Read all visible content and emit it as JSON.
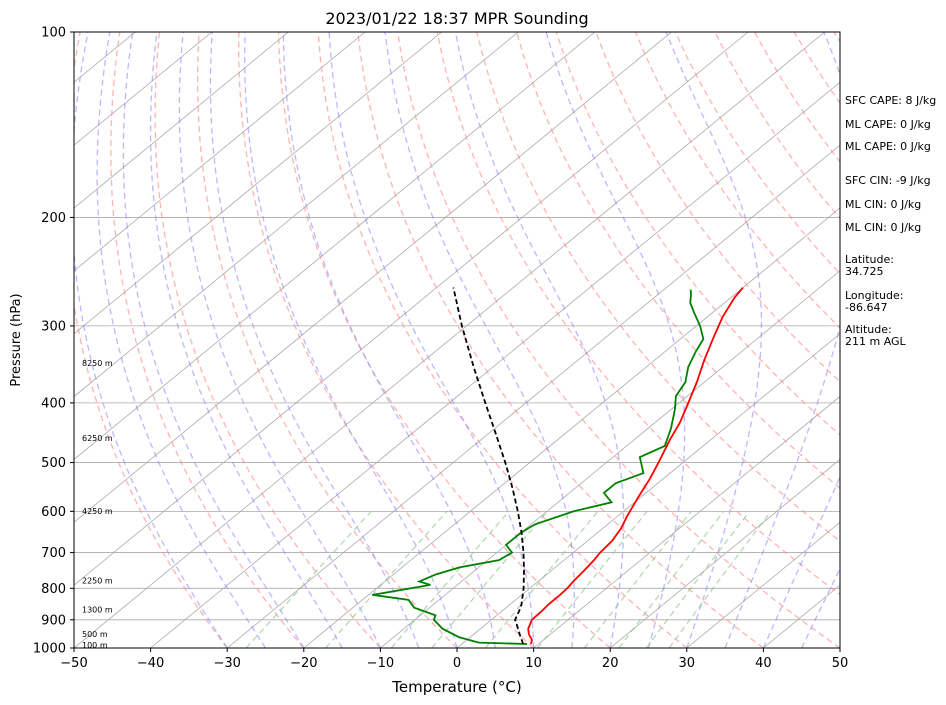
{
  "chart_data": {
    "type": "line",
    "title": "2023/01/22 18:37 MPR Sounding",
    "xlabel": "Temperature (°C)",
    "ylabel": "Pressure (hPa)",
    "xlim": [
      -50,
      50
    ],
    "ylim": [
      1000,
      100
    ],
    "y_scale": "log",
    "x_ticks": [
      -50,
      -40,
      -30,
      -20,
      -10,
      0,
      10,
      20,
      30,
      40,
      50
    ],
    "x_tick_labels": [
      "−50",
      "−40",
      "−30",
      "−20",
      "−10",
      "0",
      "10",
      "20",
      "30",
      "40",
      "50"
    ],
    "y_ticks": [
      1000,
      900,
      800,
      700,
      600,
      500,
      400,
      300,
      200,
      100
    ],
    "y_tick_labels": [
      "1000",
      "900",
      "800",
      "700",
      "600",
      "500",
      "400",
      "300",
      "200",
      "100"
    ],
    "grid": true,
    "series": [
      {
        "role": "temperature",
        "color": "#ff0000",
        "points": [
          {
            "p": 985,
            "t": 9.0
          },
          {
            "p": 970,
            "t": 8.5
          },
          {
            "p": 950,
            "t": 7.2
          },
          {
            "p": 930,
            "t": 6.2
          },
          {
            "p": 900,
            "t": 5.3
          },
          {
            "p": 870,
            "t": 5.2
          },
          {
            "p": 850,
            "t": 5.0
          },
          {
            "p": 820,
            "t": 5.0
          },
          {
            "p": 800,
            "t": 4.9
          },
          {
            "p": 780,
            "t": 4.6
          },
          {
            "p": 750,
            "t": 4.3
          },
          {
            "p": 720,
            "t": 3.9
          },
          {
            "p": 700,
            "t": 3.5
          },
          {
            "p": 670,
            "t": 3.2
          },
          {
            "p": 640,
            "t": 2.4
          },
          {
            "p": 610,
            "t": 1.2
          },
          {
            "p": 570,
            "t": -0.3
          },
          {
            "p": 530,
            "t": -1.8
          },
          {
            "p": 500,
            "t": -3.2
          },
          {
            "p": 460,
            "t": -5.3
          },
          {
            "p": 430,
            "t": -6.8
          },
          {
            "p": 400,
            "t": -8.8
          },
          {
            "p": 370,
            "t": -11.0
          },
          {
            "p": 340,
            "t": -13.6
          },
          {
            "p": 310,
            "t": -16.2
          },
          {
            "p": 290,
            "t": -18.0
          },
          {
            "p": 270,
            "t": -19.5
          },
          {
            "p": 260,
            "t": -20.0
          }
        ]
      },
      {
        "role": "dewpoint",
        "color": "#008000",
        "points": [
          {
            "p": 985,
            "t": 8.5
          },
          {
            "p": 980,
            "t": 2.0
          },
          {
            "p": 960,
            "t": -1.5
          },
          {
            "p": 930,
            "t": -5.0
          },
          {
            "p": 900,
            "t": -7.5
          },
          {
            "p": 885,
            "t": -8.0
          },
          {
            "p": 860,
            "t": -12.0
          },
          {
            "p": 835,
            "t": -14.0
          },
          {
            "p": 820,
            "t": -19.5
          },
          {
            "p": 790,
            "t": -13.5
          },
          {
            "p": 780,
            "t": -15.5
          },
          {
            "p": 760,
            "t": -14.5
          },
          {
            "p": 740,
            "t": -12.5
          },
          {
            "p": 720,
            "t": -8.5
          },
          {
            "p": 700,
            "t": -8.0
          },
          {
            "p": 680,
            "t": -10.0
          },
          {
            "p": 650,
            "t": -10.0
          },
          {
            "p": 630,
            "t": -9.5
          },
          {
            "p": 600,
            "t": -6.5
          },
          {
            "p": 580,
            "t": -3.0
          },
          {
            "p": 560,
            "t": -5.5
          },
          {
            "p": 540,
            "t": -5.5
          },
          {
            "p": 520,
            "t": -3.5
          },
          {
            "p": 490,
            "t": -6.5
          },
          {
            "p": 470,
            "t": -5.0
          },
          {
            "p": 440,
            "t": -7.0
          },
          {
            "p": 410,
            "t": -9.5
          },
          {
            "p": 390,
            "t": -11.5
          },
          {
            "p": 370,
            "t": -12.5
          },
          {
            "p": 350,
            "t": -14.5
          },
          {
            "p": 330,
            "t": -16.0
          },
          {
            "p": 315,
            "t": -17.0
          },
          {
            "p": 300,
            "t": -19.5
          },
          {
            "p": 285,
            "t": -22.5
          },
          {
            "p": 275,
            "t": -24.5
          },
          {
            "p": 268,
            "t": -25.5
          },
          {
            "p": 262,
            "t": -26.5
          }
        ]
      },
      {
        "role": "parcel",
        "color": "#000000",
        "dashed": true,
        "points": [
          {
            "p": 985,
            "t": 8.0
          },
          {
            "p": 950,
            "t": 6.0
          },
          {
            "p": 920,
            "t": 4.3
          },
          {
            "p": 900,
            "t": 3.1
          },
          {
            "p": 870,
            "t": 2.2
          },
          {
            "p": 850,
            "t": 1.5
          },
          {
            "p": 800,
            "t": -0.8
          },
          {
            "p": 750,
            "t": -3.5
          },
          {
            "p": 700,
            "t": -6.5
          },
          {
            "p": 650,
            "t": -9.9
          },
          {
            "p": 600,
            "t": -13.8
          },
          {
            "p": 550,
            "t": -18.2
          },
          {
            "p": 500,
            "t": -23.2
          },
          {
            "p": 450,
            "t": -28.9
          },
          {
            "p": 400,
            "t": -35.3
          },
          {
            "p": 350,
            "t": -42.5
          },
          {
            "p": 300,
            "t": -50.6
          },
          {
            "p": 260,
            "t": -57.8
          }
        ]
      }
    ],
    "height_labels": [
      {
        "p": 990,
        "text": "100 m"
      },
      {
        "p": 950,
        "text": "500 m"
      },
      {
        "p": 868,
        "text": "1300 m"
      },
      {
        "p": 778,
        "text": "2250 m"
      },
      {
        "p": 600,
        "text": "4250 m"
      },
      {
        "p": 457,
        "text": "6250 m"
      },
      {
        "p": 345,
        "text": "8250 m"
      }
    ],
    "background_lines": {
      "isotherm_color": "#aaaaaa",
      "dry_adiabat_color": "#ff8080",
      "moist_adiabat_color": "#8080ff",
      "mixing_ratio_color": "#80c080"
    }
  },
  "info": {
    "sfc_cape": "SFC CAPE: 8 J/kg",
    "ml_cape_1": "ML CAPE: 0 J/kg",
    "ml_cape_2": "ML CAPE: 0 J/kg",
    "sfc_cin": "SFC CIN: -9 J/kg",
    "ml_cin_1": "ML CIN: 0 J/kg",
    "ml_cin_2": "ML CIN: 0 J/kg",
    "latitude_label": "Latitude:",
    "latitude_value": "34.725",
    "longitude_label": "Longitude:",
    "longitude_value": "-86.647",
    "altitude_label": "Altitude:",
    "altitude_value": "211 m AGL"
  }
}
